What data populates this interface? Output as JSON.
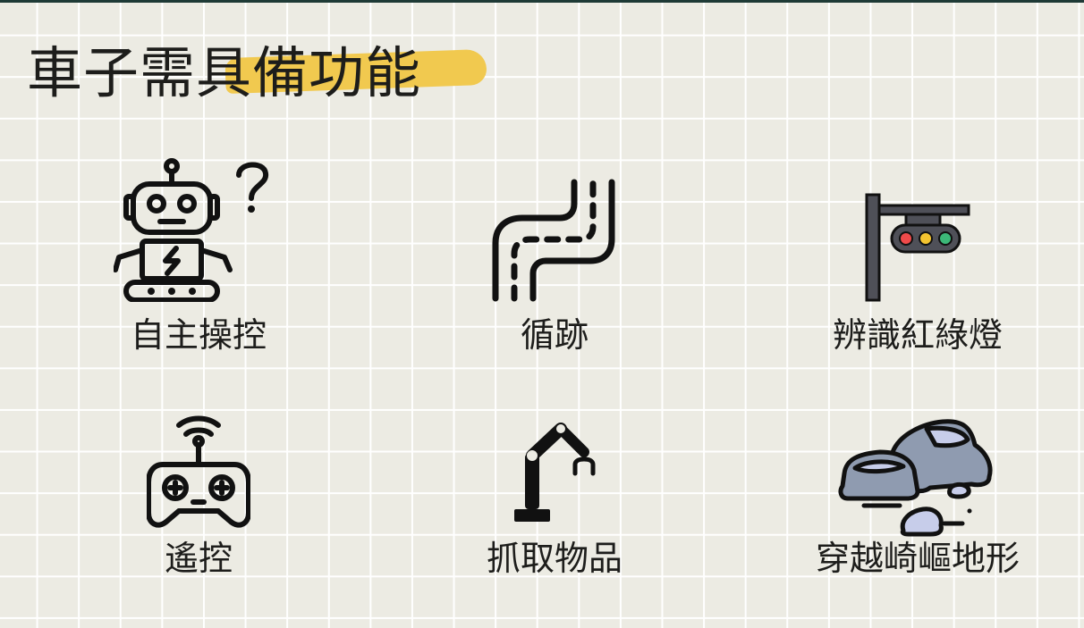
{
  "title": {
    "prefix": "車子需",
    "highlight": "具備功能",
    "highlight_color": "#f1c94f"
  },
  "features": [
    {
      "label": "自主操控",
      "icon": "robot-question-icon"
    },
    {
      "label": "循跡",
      "icon": "path-track-icon"
    },
    {
      "label": "辨識紅綠燈",
      "icon": "traffic-light-icon"
    },
    {
      "label": "遙控",
      "icon": "remote-controller-icon"
    },
    {
      "label": "抓取物品",
      "icon": "robotic-arm-icon"
    },
    {
      "label": "穿越崎嶇地形",
      "icon": "rocks-terrain-icon"
    }
  ],
  "colors": {
    "background": "#ecebe3",
    "grid": "#ffffff",
    "text": "#1d1d1b",
    "top_bar": "#1e3a36",
    "traffic_red": "#ef4a4a",
    "traffic_yellow": "#f4c430",
    "traffic_green": "#3cb878",
    "rock": "#8f9bb0",
    "rock_light": "#c7cdea"
  }
}
